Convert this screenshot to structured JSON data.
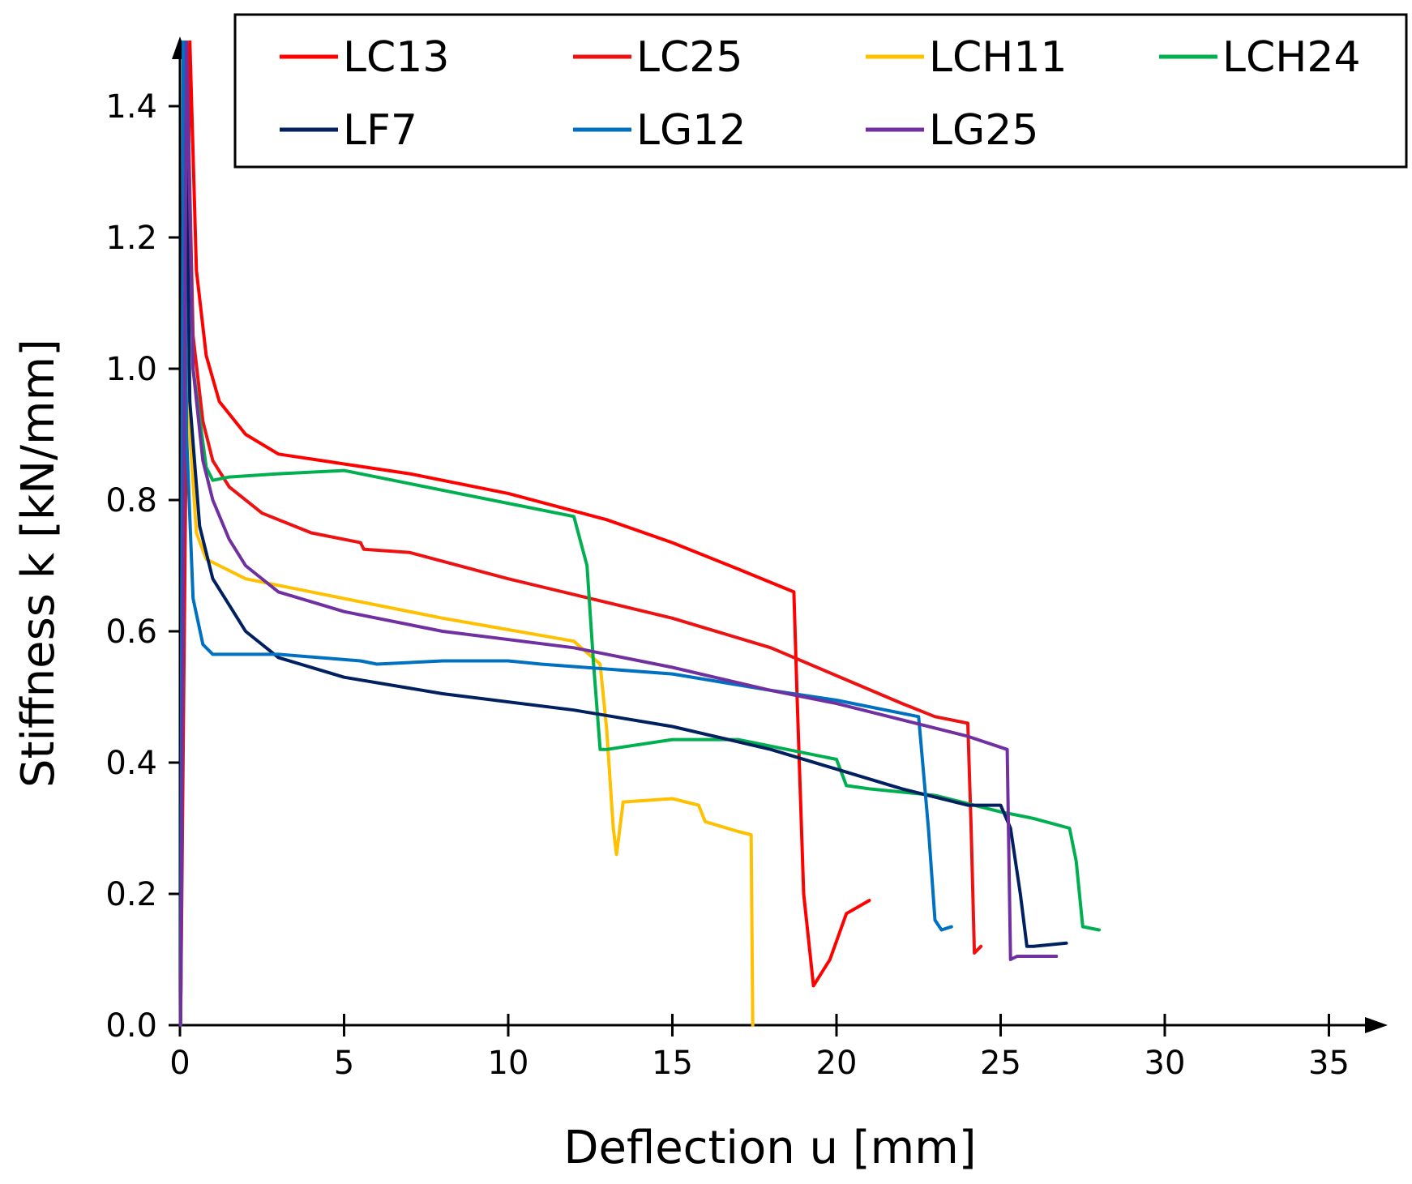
{
  "chart_data": {
    "type": "line",
    "title": "",
    "xlabel": "Deflection u [mm]",
    "ylabel": "Stiffness k [kN/mm]",
    "xlim": [
      0,
      36
    ],
    "ylim": [
      0,
      1.5
    ],
    "xticks": [
      0,
      5,
      10,
      15,
      20,
      25,
      30,
      35
    ],
    "yticks": [
      0.0,
      0.2,
      0.4,
      0.6,
      0.8,
      1.0,
      1.2,
      1.4
    ],
    "xtick_labels": [
      "0",
      "5",
      "10",
      "15",
      "20",
      "25",
      "30",
      "35"
    ],
    "ytick_labels": [
      "0.0",
      "0.2",
      "0.4",
      "0.6",
      "0.8",
      "1.0",
      "1.2",
      "1.4"
    ],
    "grid": false,
    "legend_position": "top",
    "series": [
      {
        "name": "LC13",
        "color": "#ff0000",
        "x": [
          0.3,
          0.5,
          0.8,
          1.2,
          2,
          3,
          5,
          7,
          10,
          13,
          15,
          17,
          18.7,
          18.8,
          19,
          19.3,
          19.8,
          20.3,
          21
        ],
        "y": [
          1.5,
          1.15,
          1.02,
          0.95,
          0.9,
          0.87,
          0.855,
          0.84,
          0.81,
          0.77,
          0.735,
          0.695,
          0.66,
          0.5,
          0.2,
          0.06,
          0.1,
          0.17,
          0.19
        ]
      },
      {
        "name": "LC25",
        "color": "#ee1111",
        "x": [
          0.2,
          0.4,
          0.7,
          1,
          1.5,
          2.5,
          4,
          5.5,
          5.6,
          7,
          10,
          15,
          18,
          22,
          23,
          24,
          24.1,
          24.2,
          24.4
        ],
        "y": [
          1.5,
          1.05,
          0.92,
          0.86,
          0.82,
          0.78,
          0.75,
          0.735,
          0.725,
          0.72,
          0.68,
          0.62,
          0.575,
          0.49,
          0.47,
          0.46,
          0.3,
          0.11,
          0.12
        ]
      },
      {
        "name": "LCH11",
        "color": "#ffc000",
        "x": [
          0.15,
          0.3,
          0.5,
          0.8,
          1.2,
          2,
          4,
          8,
          12,
          12.8,
          13,
          13.2,
          13.3,
          13.5,
          15,
          15.8,
          16,
          17,
          17.4,
          17.45
        ],
        "y": [
          1.5,
          0.9,
          0.75,
          0.71,
          0.7,
          0.68,
          0.66,
          0.62,
          0.585,
          0.55,
          0.45,
          0.3,
          0.26,
          0.34,
          0.345,
          0.335,
          0.31,
          0.295,
          0.29,
          0.0
        ]
      },
      {
        "name": "LCH24",
        "color": "#00b050",
        "x": [
          0.2,
          0.4,
          0.8,
          1,
          1.5,
          3,
          5,
          8,
          12,
          12.4,
          12.6,
          12.8,
          13,
          15,
          17,
          20,
          20.3,
          21,
          23,
          25,
          26,
          27.1,
          27.3,
          27.5,
          28
        ],
        "y": [
          1.5,
          1.0,
          0.85,
          0.83,
          0.835,
          0.84,
          0.845,
          0.815,
          0.775,
          0.7,
          0.55,
          0.42,
          0.42,
          0.435,
          0.435,
          0.405,
          0.365,
          0.36,
          0.35,
          0.325,
          0.315,
          0.3,
          0.25,
          0.15,
          0.145
        ]
      },
      {
        "name": "LF7",
        "color": "#002060",
        "x": [
          0.15,
          0.3,
          0.6,
          1,
          1.5,
          2,
          3,
          5,
          8,
          12,
          15,
          18,
          20,
          22,
          24,
          25,
          25.3,
          25.6,
          25.8,
          26,
          27
        ],
        "y": [
          1.5,
          0.95,
          0.76,
          0.68,
          0.64,
          0.6,
          0.56,
          0.53,
          0.505,
          0.48,
          0.455,
          0.42,
          0.39,
          0.36,
          0.335,
          0.335,
          0.3,
          0.2,
          0.12,
          0.12,
          0.125
        ]
      },
      {
        "name": "LG12",
        "color": "#0070c0",
        "x": [
          0.1,
          0.2,
          0.4,
          0.7,
          1,
          1.5,
          3,
          5.5,
          6,
          8,
          10,
          11,
          15,
          18,
          20,
          22.5,
          22.8,
          23,
          23.2,
          23.5
        ],
        "y": [
          1.5,
          0.9,
          0.65,
          0.58,
          0.565,
          0.565,
          0.565,
          0.555,
          0.55,
          0.555,
          0.555,
          0.55,
          0.535,
          0.51,
          0.495,
          0.47,
          0.3,
          0.16,
          0.145,
          0.15
        ]
      },
      {
        "name": "LG25",
        "color": "#7030a0",
        "x": [
          0.2,
          0.4,
          0.7,
          1,
          1.5,
          2,
          3,
          5,
          8,
          12,
          15,
          18,
          20,
          22,
          24,
          25.2,
          25.3,
          25.5,
          26.7
        ],
        "y": [
          1.5,
          1.0,
          0.86,
          0.8,
          0.74,
          0.7,
          0.66,
          0.63,
          0.6,
          0.575,
          0.545,
          0.51,
          0.49,
          0.465,
          0.44,
          0.42,
          0.1,
          0.105,
          0.105
        ]
      }
    ]
  }
}
